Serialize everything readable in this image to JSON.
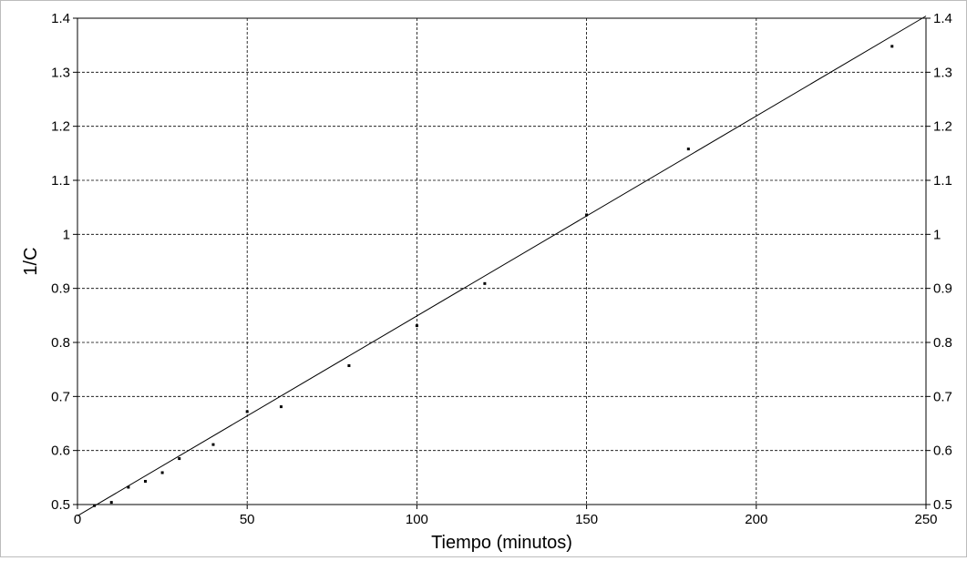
{
  "chart_data": {
    "type": "scatter",
    "title": "",
    "xlabel": "Tiempo (minutos)",
    "ylabel": "1/C",
    "xlim": [
      0,
      250
    ],
    "ylim": [
      0.5,
      1.4
    ],
    "x_ticks": [
      "0",
      "50",
      "100",
      "150",
      "200",
      "250"
    ],
    "y_ticks_left": [
      "0.5",
      "0.6",
      "0.7",
      "0.8",
      "0.9",
      "1",
      "1.1",
      "1.2",
      "1.3",
      "1.4"
    ],
    "y_ticks_right": [
      "0.5",
      "0.6",
      "0.7",
      "0.8",
      "0.9",
      "1",
      "1.1",
      "1.2",
      "1.3",
      "1.4"
    ],
    "grid": true,
    "series": [
      {
        "type": "scatter",
        "x": [
          5,
          10,
          15,
          20,
          25,
          30,
          40,
          50,
          60,
          80,
          100,
          120,
          150,
          180,
          240
        ],
        "y": [
          0.498,
          0.504,
          0.532,
          0.543,
          0.559,
          0.585,
          0.611,
          0.672,
          0.681,
          0.757,
          0.831,
          0.909,
          1.036,
          1.158,
          1.348
        ]
      },
      {
        "type": "line",
        "x": [
          0,
          250
        ],
        "y": [
          0.479,
          1.404
        ]
      }
    ],
    "colors": {
      "points": "#000000",
      "line": "#000000",
      "grid": "#000000",
      "axis": "#000000"
    }
  }
}
